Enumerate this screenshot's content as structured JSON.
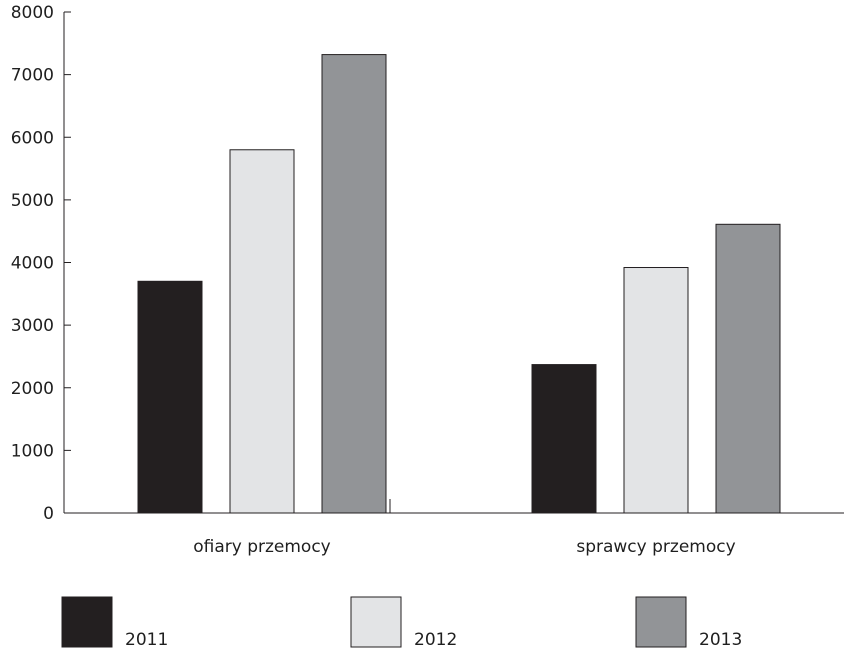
{
  "chart_data": {
    "type": "bar",
    "title": "",
    "xlabel": "",
    "ylabel": "",
    "ylim": [
      0,
      8000
    ],
    "yticks": [
      0,
      1000,
      2000,
      3000,
      4000,
      5000,
      6000,
      7000,
      8000
    ],
    "categories": [
      "ofiary przemocy",
      "sprawcy przemocy"
    ],
    "series": [
      {
        "name": "2011",
        "values": [
          3700,
          2370
        ],
        "color": "#231f20"
      },
      {
        "name": "2012",
        "values": [
          5800,
          3920
        ],
        "color": "#e3e4e6"
      },
      {
        "name": "2013",
        "values": [
          7320,
          4610
        ],
        "color": "#929497"
      }
    ],
    "grid": false,
    "legend_position": "bottom"
  }
}
